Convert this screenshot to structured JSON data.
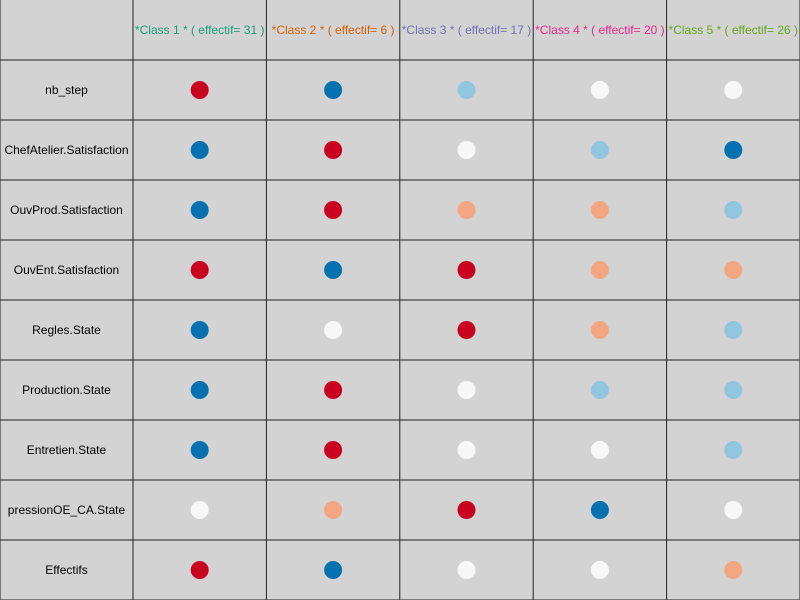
{
  "chart_data": {
    "type": "heatmap",
    "title": "",
    "xlabel": "",
    "ylabel": "",
    "columns": [
      {
        "label": "*Class 1 *  ( effectif= 31 )",
        "color": "#1b9e77"
      },
      {
        "label": "*Class 2 *  ( effectif= 6 )",
        "color": "#d95f02"
      },
      {
        "label": "*Class 3 *  ( effectif= 17 )",
        "color": "#7570b3"
      },
      {
        "label": "*Class 4 *  ( effectif= 20 )",
        "color": "#e7298a"
      },
      {
        "label": "*Class 5 *  ( effectif= 26 )",
        "color": "#66a61e"
      }
    ],
    "rows": [
      "nb_step",
      "ChefAtelier.Satisfaction",
      "OuvProd.Satisfaction",
      "OuvEnt.Satisfaction",
      "Regles.State",
      "Production.State",
      "Entretien.State",
      "pressionOE_CA.State",
      "Effectifs"
    ],
    "levels": {
      "-2": "#0571b0",
      "-1": "#92c5de",
      "0": "#f7f7f7",
      "1": "#f4a582",
      "2": "#ca0020"
    },
    "values": [
      [
        2,
        -2,
        -1,
        0,
        0
      ],
      [
        -2,
        2,
        0,
        -1,
        -2
      ],
      [
        -2,
        2,
        1,
        1,
        -1
      ],
      [
        2,
        -2,
        2,
        1,
        1
      ],
      [
        -2,
        0,
        2,
        1,
        -1
      ],
      [
        -2,
        2,
        0,
        -1,
        -1
      ],
      [
        -2,
        2,
        0,
        0,
        -1
      ],
      [
        0,
        1,
        2,
        -2,
        0
      ],
      [
        2,
        -2,
        0,
        0,
        1
      ]
    ],
    "grid": true
  }
}
